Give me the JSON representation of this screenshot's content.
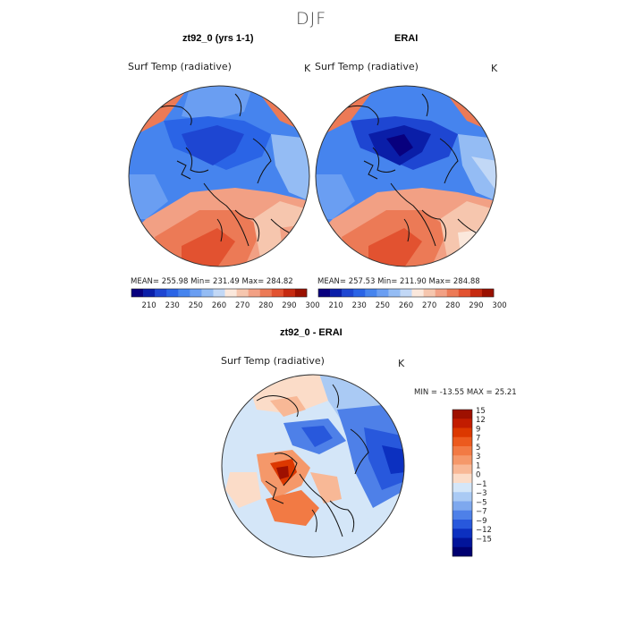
{
  "title": "DJF",
  "panel1": {
    "title": "zt92_0 (yrs 1-1)",
    "variable": "Surf Temp (radiative)",
    "units": "K",
    "stats": "MEAN= 255.98   Min= 231.49   Max= 284.82"
  },
  "panel2": {
    "title": "ERAI",
    "variable": "Surf Temp (radiative)",
    "units": "K",
    "stats": "MEAN= 257.53   Min= 211.90   Max= 284.88"
  },
  "panel3": {
    "title": "zt92_0 - ERAI",
    "variable": "Surf Temp (radiative)",
    "units": "K",
    "stats": "MIN = -13.55  MAX =  25.21"
  },
  "colorbar_abs": {
    "labels": [
      "210",
      "230",
      "250",
      "260",
      "270",
      "280",
      "290",
      "300"
    ],
    "colors": [
      "#08007e",
      "#0a1ea8",
      "#1e46d2",
      "#2a64e6",
      "#4684ee",
      "#6a9ef2",
      "#94bcf4",
      "#c2d8f6",
      "#fbe8dc",
      "#f6c6ae",
      "#f2a084",
      "#ec7a56",
      "#e25230",
      "#c62a10",
      "#9a1000"
    ]
  },
  "colorbar_diff": {
    "labels": [
      "15",
      "12",
      "9",
      "7",
      "5",
      "3",
      "1",
      "0",
      "−1",
      "−3",
      "−5",
      "−7",
      "−9",
      "−12",
      "−15"
    ],
    "colors": [
      "#9e1000",
      "#c21c00",
      "#dc3800",
      "#ec5a1e",
      "#f27a44",
      "#f5986a",
      "#f8b896",
      "#fbdcc8",
      "#d4e6f8",
      "#aacaf4",
      "#7ea8ee",
      "#4e80e8",
      "#2858dc",
      "#0c30c0",
      "#02149a",
      "#000070"
    ]
  },
  "chart_data": [
    {
      "type": "map",
      "projection": "north polar stereographic",
      "title": "zt92_0 (yrs 1-1)",
      "variable": "Surf Temp (radiative)",
      "units": "K",
      "mean": 255.98,
      "min": 231.49,
      "max": 284.82,
      "levels": [
        210,
        230,
        250,
        260,
        270,
        280,
        290,
        300
      ]
    },
    {
      "type": "map",
      "projection": "north polar stereographic",
      "title": "ERAI",
      "variable": "Surf Temp (radiative)",
      "units": "K",
      "mean": 257.53,
      "min": 211.9,
      "max": 284.88,
      "levels": [
        210,
        230,
        250,
        260,
        270,
        280,
        290,
        300
      ]
    },
    {
      "type": "map",
      "projection": "north polar stereographic",
      "title": "zt92_0 - ERAI",
      "variable": "Surf Temp (radiative)",
      "units": "K",
      "min": -13.55,
      "max": 25.21,
      "levels": [
        -15,
        -12,
        -9,
        -7,
        -5,
        -3,
        -1,
        0,
        1,
        3,
        5,
        7,
        9,
        12,
        15
      ]
    }
  ]
}
